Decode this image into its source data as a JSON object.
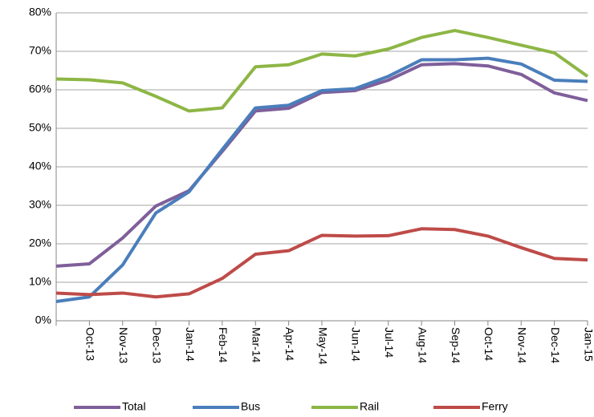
{
  "chart_data": {
    "type": "line",
    "categories": [
      null,
      "Oct-13",
      "Nov-13",
      "Dec-13",
      "Jan-14",
      "Feb-14",
      "Mar-14",
      "Apr-14",
      "May-14",
      "Jun-14",
      "Jul-14",
      "Aug-14",
      "Sep-14",
      "Oct-14",
      "Nov-14",
      "Dec-14",
      "Jan-15"
    ],
    "series": [
      {
        "name": "Total",
        "color": "#7f5f9a",
        "values": [
          14.2,
          14.8,
          21.5,
          29.8,
          33.8,
          44,
          54.5,
          55.2,
          59.3,
          59.8,
          62.5,
          66.5,
          66.8,
          66.2,
          64,
          59.2,
          57.2
        ]
      },
      {
        "name": "Bus",
        "color": "#4a7ebb",
        "values": [
          5,
          6.2,
          14.5,
          28,
          33.5,
          44.5,
          55.3,
          56,
          59.8,
          60.3,
          63.5,
          67.8,
          67.8,
          68.2,
          66.7,
          62.5,
          62.2
        ]
      },
      {
        "name": "Rail",
        "color": "#8db645",
        "values": [
          62.8,
          62.6,
          61.8,
          58.3,
          54.5,
          55.3,
          66,
          66.5,
          69.3,
          68.8,
          70.6,
          73.6,
          75.4,
          73.6,
          71.6,
          69.6,
          63.5
        ]
      },
      {
        "name": "Ferry",
        "color": "#be4b48",
        "values": [
          7.2,
          6.8,
          7.2,
          6.2,
          7,
          11,
          17.3,
          18.2,
          22.2,
          22,
          22.1,
          23.9,
          23.7,
          22,
          19,
          16.2,
          15.8
        ]
      }
    ],
    "ylim": [
      0,
      80
    ],
    "yticks": [
      {
        "value": 0,
        "label": "0%"
      },
      {
        "value": 10,
        "label": "10%"
      },
      {
        "value": 20,
        "label": "20%"
      },
      {
        "value": 30,
        "label": "30%"
      },
      {
        "value": 40,
        "label": "40%"
      },
      {
        "value": 50,
        "label": "50%"
      },
      {
        "value": 60,
        "label": "60%"
      },
      {
        "value": 70,
        "label": "70%"
      },
      {
        "value": 80,
        "label": "80%"
      }
    ],
    "grid": true,
    "legend": "bottom"
  }
}
